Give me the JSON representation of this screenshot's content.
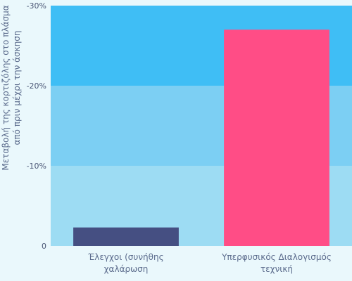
{
  "chart_data": {
    "type": "bar",
    "categories": [
      [
        "Έλεγχοι (συνήθης",
        "χαλάρωση"
      ],
      [
        "Υπερφυσικός Διαλογισμός",
        "τεχνική"
      ]
    ],
    "values": [
      -2.3,
      -27.0
    ],
    "ylabel": [
      "Μεταβολή της κορτιζόλης στο πλάσμα",
      "από πριν μέχρι την άσκηση"
    ],
    "ylim": [
      0,
      -30
    ],
    "yticks": [
      {
        "value": 0,
        "label": "0"
      },
      {
        "value": -10,
        "label": "-10%"
      },
      {
        "value": -20,
        "label": "-20%"
      },
      {
        "value": -30,
        "label": "-30%"
      }
    ],
    "bar_colors": [
      "#454f82",
      "#ff4d86"
    ],
    "band_colors": [
      "#9ddcf3",
      "#7ccff3",
      "#3fbef5"
    ],
    "label_color": "#5b6b8c",
    "tick_color": "#4a5675"
  }
}
